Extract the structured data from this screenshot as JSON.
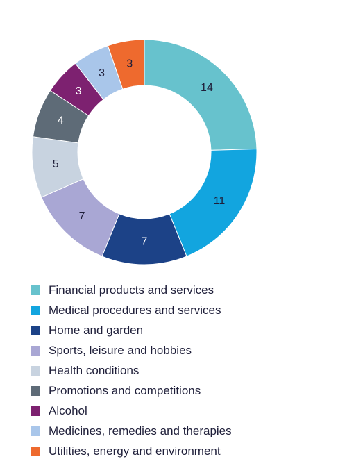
{
  "chart_data": {
    "type": "pie",
    "variant": "donut",
    "title": "",
    "categories": [
      "Financial products and services",
      "Medical procedures and services",
      "Home and garden",
      "Sports, leisure and hobbies",
      "Health conditions",
      "Promotions and competitions",
      "Alcohol",
      "Medicines, remedies and therapies",
      "Utilities, energy and environment"
    ],
    "values": [
      14,
      11,
      7,
      7,
      5,
      4,
      3,
      3,
      3
    ],
    "data_labels": [
      "14",
      "11",
      "7",
      "7",
      "5",
      "4",
      "3",
      "3",
      "3"
    ],
    "colors": [
      "#67c2cd",
      "#12a5df",
      "#1c4287",
      "#a9a7d4",
      "#c8d3e0",
      "#5e6b77",
      "#7d2170",
      "#a9c6ea",
      "#ee6a2e"
    ],
    "label_colors": [
      "#1f1f3a",
      "#1f1f3a",
      "#ffffff",
      "#1f1f3a",
      "#1f1f3a",
      "#ffffff",
      "#ffffff",
      "#1f1f3a",
      "#1f1f3a"
    ],
    "legend_position": "bottom"
  }
}
